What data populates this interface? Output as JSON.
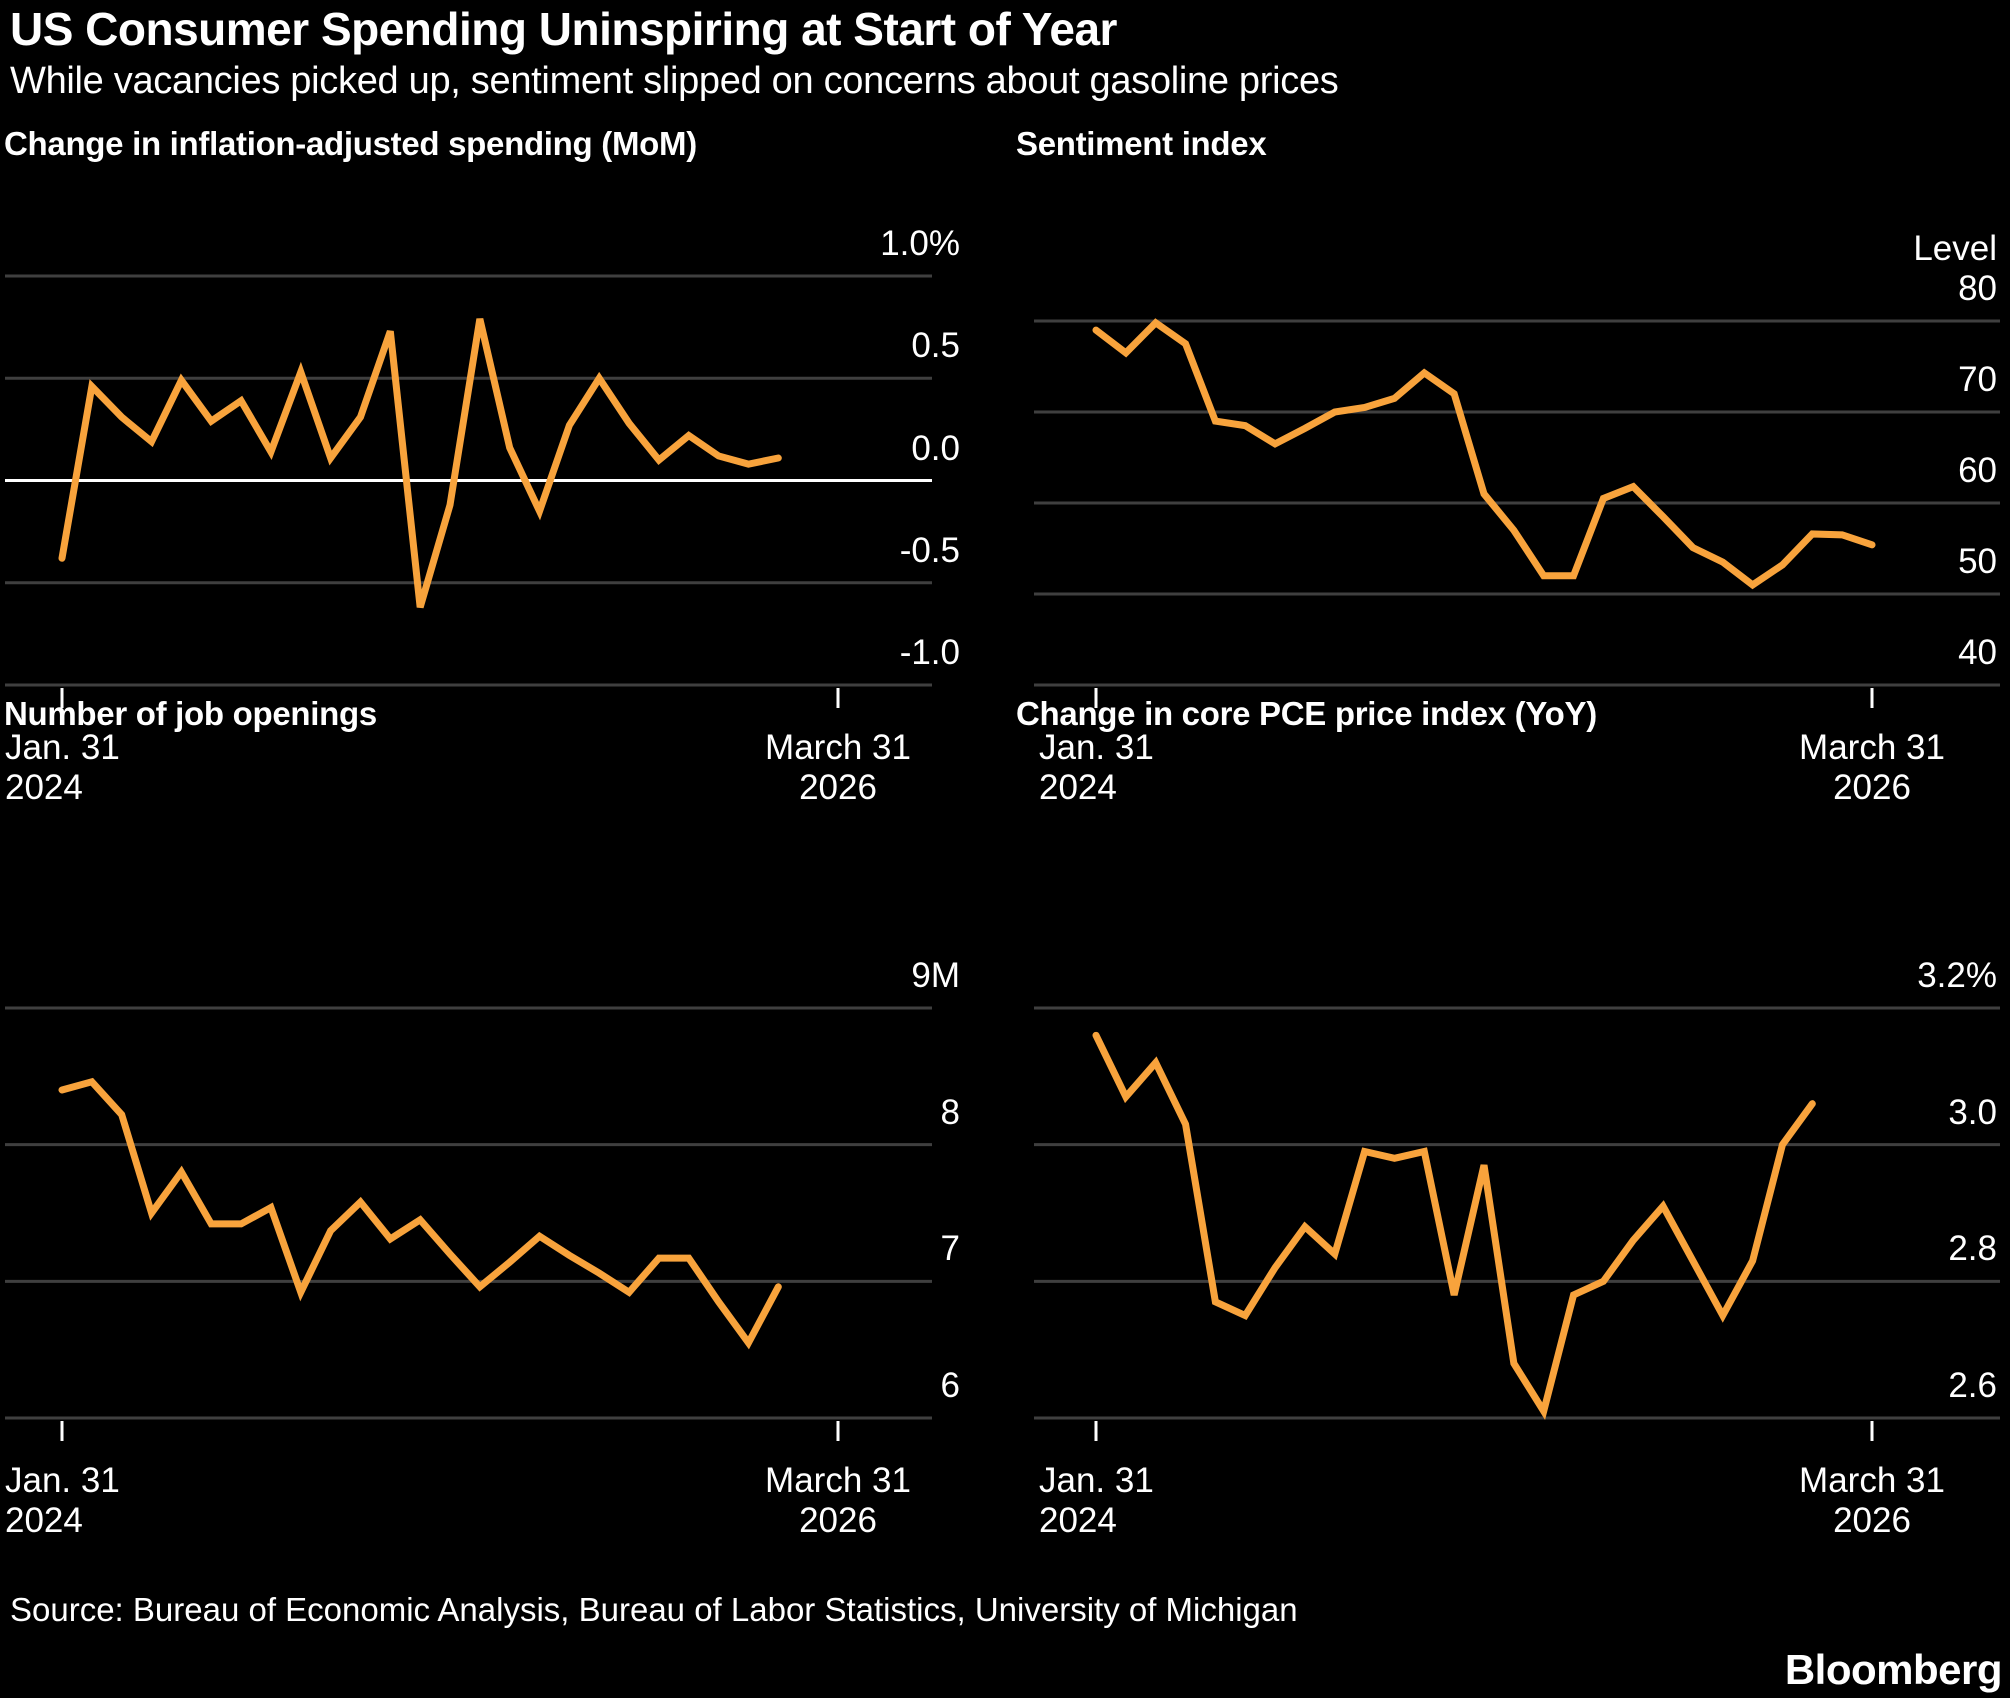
{
  "page": {
    "background_color": "#000000",
    "accent_color": "#F8A33C",
    "grid_color": "#3F3F3F",
    "zero_line_color": "#FFFFFF",
    "text_color": "#FFFFFF"
  },
  "header": {
    "title": "US Consumer Spending Uninspiring at Start of Year",
    "subtitle": "While vacancies picked up, sentiment slipped on concerns about gasoline prices"
  },
  "footer": {
    "source": "Source: Bureau of Economic Analysis, Bureau of Labor Statistics, University of Michigan",
    "brand": "Bloomberg"
  },
  "chart_data": [
    {
      "type": "line",
      "name": "spending",
      "title": "Change in inflation-adjusted spending (MoM)",
      "y_axis": {
        "top_value": 1.0,
        "bottom_value": -1.0,
        "zero_line_value": 0.0,
        "corner_label": null,
        "labels": [
          {
            "text": "1.0%",
            "value": 1.0
          },
          {
            "text": "0.5",
            "value": 0.5
          },
          {
            "text": "0.0",
            "value": 0.0
          },
          {
            "text": "-0.5",
            "value": -0.5
          },
          {
            "text": "-1.0",
            "value": -1.0
          }
        ]
      },
      "x_axis": {
        "months_span": 26,
        "ticks": [
          {
            "line1": "Jan. 31",
            "line2": "2024",
            "month": 0,
            "align": "left"
          },
          {
            "line1": "March 31",
            "line2": "2026",
            "month": 26,
            "align": "center"
          }
        ]
      },
      "grid": true,
      "legend": "none",
      "values": [
        -0.38,
        0.46,
        0.31,
        0.19,
        0.49,
        0.29,
        0.39,
        0.14,
        0.53,
        0.11,
        0.31,
        0.73,
        -0.62,
        -0.12,
        0.79,
        0.16,
        -0.15,
        0.27,
        0.5,
        0.28,
        0.1,
        0.22,
        0.12,
        0.08,
        0.11
      ]
    },
    {
      "type": "line",
      "name": "sentiment",
      "title": "Sentiment index",
      "y_axis": {
        "top_value": 80,
        "bottom_value": 40,
        "zero_line_value": null,
        "corner_label": "Level",
        "labels": [
          {
            "text": "80",
            "value": 80
          },
          {
            "text": "70",
            "value": 70
          },
          {
            "text": "60",
            "value": 60
          },
          {
            "text": "50",
            "value": 50
          },
          {
            "text": "40",
            "value": 40
          }
        ]
      },
      "x_axis": {
        "months_span": 26,
        "ticks": [
          {
            "line1": "Jan. 31",
            "line2": "2024",
            "month": 0,
            "align": "left"
          },
          {
            "line1": "March 31",
            "line2": "2026",
            "month": 26,
            "align": "center"
          }
        ]
      },
      "grid": true,
      "legend": "none",
      "values": [
        79,
        76.5,
        79.8,
        77.5,
        69,
        68.5,
        66.5,
        68.2,
        70,
        70.5,
        71.5,
        74.3,
        72,
        61,
        57,
        52,
        52,
        60.5,
        61.8,
        58.5,
        55.1,
        53.5,
        51,
        53.2,
        56.6,
        56.5,
        55.4
      ]
    },
    {
      "type": "line",
      "name": "job-openings",
      "title": "Number of job openings",
      "y_axis": {
        "top_value": 9,
        "bottom_value": 6,
        "zero_line_value": null,
        "corner_label": null,
        "labels": [
          {
            "text": "9M",
            "value": 9
          },
          {
            "text": "8",
            "value": 8
          },
          {
            "text": "7",
            "value": 7
          },
          {
            "text": "6",
            "value": 6
          }
        ]
      },
      "x_axis": {
        "months_span": 26,
        "ticks": [
          {
            "line1": "Jan. 31",
            "line2": "2024",
            "month": 0,
            "align": "left"
          },
          {
            "line1": "March 31",
            "line2": "2026",
            "month": 26,
            "align": "center"
          }
        ]
      },
      "grid": true,
      "legend": "none",
      "values": [
        8.4,
        8.46,
        8.22,
        7.5,
        7.8,
        7.42,
        7.42,
        7.54,
        6.92,
        7.37,
        7.58,
        7.31,
        7.45,
        7.2,
        6.96,
        7.14,
        7.33,
        7.19,
        7.06,
        6.92,
        7.17,
        7.17,
        6.85,
        6.55,
        6.96
      ]
    },
    {
      "type": "line",
      "name": "core-pce",
      "title": "Change in core PCE price index (YoY)",
      "y_axis": {
        "top_value": 3.2,
        "bottom_value": 2.6,
        "zero_line_value": null,
        "corner_label": null,
        "labels": [
          {
            "text": "3.2%",
            "value": 3.2
          },
          {
            "text": "3.0",
            "value": 3.0
          },
          {
            "text": "2.8",
            "value": 2.8
          },
          {
            "text": "2.6",
            "value": 2.6
          }
        ]
      },
      "x_axis": {
        "months_span": 26,
        "ticks": [
          {
            "line1": "Jan. 31",
            "line2": "2024",
            "month": 0,
            "align": "left"
          },
          {
            "line1": "March 31",
            "line2": "2026",
            "month": 26,
            "align": "center"
          }
        ]
      },
      "grid": true,
      "legend": "none",
      "values": [
        3.16,
        3.07,
        3.12,
        3.03,
        2.77,
        2.75,
        2.82,
        2.88,
        2.84,
        2.99,
        2.98,
        2.99,
        2.78,
        2.97,
        2.68,
        2.61,
        2.78,
        2.8,
        2.86,
        2.91,
        2.83,
        2.75,
        2.83,
        3.0,
        3.06
      ]
    }
  ]
}
